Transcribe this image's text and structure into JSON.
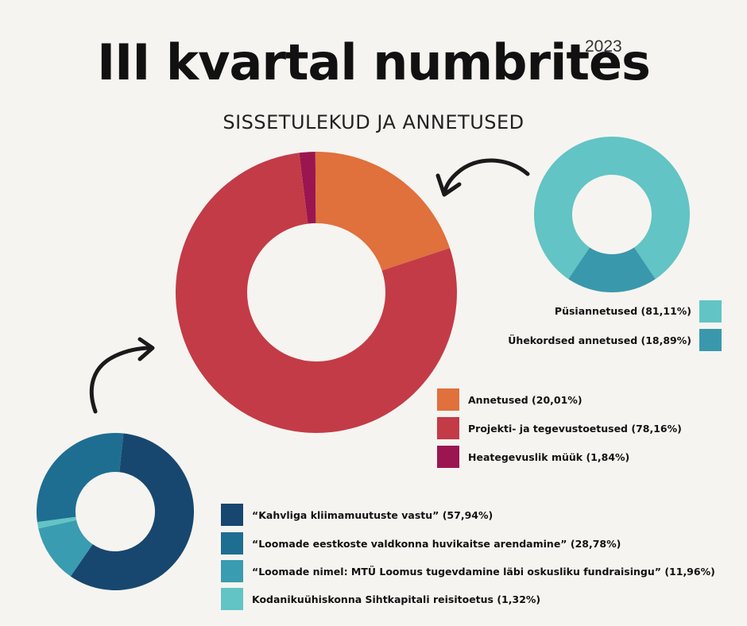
{
  "header": {
    "title": "III kvartal numbrites",
    "year": "2023",
    "subtitle": "SISSETULEKUD JA ANNETUSED"
  },
  "chart_data": [
    {
      "type": "pie",
      "variant": "donut",
      "id": "main",
      "title": "",
      "categories": [
        "Annetused",
        "Projekti- ja tegevustoetused",
        "Heategevuslik müük"
      ],
      "values": [
        20.01,
        78.16,
        1.84
      ],
      "labels": [
        "Annetused (20,01%)",
        "Projekti- ja tegevustoetused (78,16%)",
        "Heategevuslik müük (1,84%)"
      ],
      "colors": [
        "#e0703c",
        "#c33b47",
        "#9b1650"
      ],
      "legend": "bottom-right"
    },
    {
      "type": "pie",
      "variant": "donut",
      "id": "donations",
      "title": "",
      "categories": [
        "Püsiannetused",
        "Ühekordsed annetused"
      ],
      "values": [
        81.11,
        18.89
      ],
      "labels": [
        "Püsiannetused (81,11%)",
        "Ühekordsed annetused (18,89%)"
      ],
      "colors": [
        "#62c4c4",
        "#3a98ad"
      ],
      "legend": "bottom"
    },
    {
      "type": "pie",
      "variant": "donut",
      "id": "projects",
      "title": "",
      "categories": [
        "“Kahvliga kliimamuutuste vastu”",
        "“Loomade eestkoste valdkonna huvikaitse arendamine”",
        "“Loomade nimel: MTÜ Loomus tugevdamine läbi oskusliku fundraisingu”",
        "Kodanikuühiskonna Sihtkapitali reisitoetus"
      ],
      "values": [
        57.94,
        28.78,
        11.96,
        1.32
      ],
      "labels": [
        "“Kahvliga kliimamuutuste vastu” (57,94%)",
        "“Loomade eestkoste valdkonna huvikaitse arendamine” (28,78%)",
        "“Loomade nimel: MTÜ Loomus tugevdamine läbi oskusliku fundraisingu” (11,96%)",
        "Kodanikuühiskonna Sihtkapitali reisitoetus (1,32%)"
      ],
      "colors": [
        "#17476f",
        "#1e6e91",
        "#3a9cb0",
        "#62c4c4"
      ],
      "legend": "right"
    }
  ]
}
